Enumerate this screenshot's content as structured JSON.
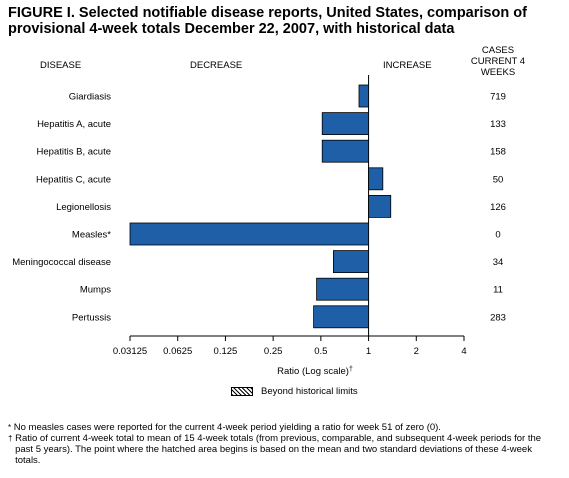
{
  "title": "FIGURE I. Selected notifiable disease reports, United States, comparison of provisional 4-week totals December 22, 2007, with historical data",
  "headers": {
    "disease": "DISEASE",
    "decrease": "DECREASE",
    "increase": "INCREASE",
    "cases": "CASES CURRENT 4 WEEKS"
  },
  "chart_data": {
    "type": "bar",
    "orientation": "horizontal",
    "xscale": "log2",
    "xlabel": "Ratio (Log scale)",
    "xlabel_mark": "†",
    "xlim": [
      0.03125,
      4
    ],
    "x_ticks": [
      "0.03125",
      "0.0625",
      "0.125",
      "0.25",
      "0.5",
      "1",
      "2",
      "4"
    ],
    "x_tick_values": [
      0.03125,
      0.0625,
      0.125,
      0.25,
      0.5,
      1,
      2,
      4
    ],
    "baseline": 1,
    "categories": [
      "Giardiasis",
      "Hepatitis A, acute",
      "Hepatitis B, acute",
      "Hepatitis C, acute",
      "Legionellosis",
      "Measles*",
      "Meningococcal disease",
      "Mumps",
      "Pertussis"
    ],
    "values": [
      0.87,
      0.51,
      0.51,
      1.23,
      1.38,
      0.03125,
      0.6,
      0.47,
      0.45
    ],
    "cases_current_4_weeks": [
      "719",
      "133",
      "158",
      "50",
      "126",
      "0",
      "34",
      "11",
      "283"
    ],
    "bar_color": "#1f5fa8"
  },
  "legend": {
    "label": "Beyond historical limits"
  },
  "footnotes": [
    {
      "mark": "*",
      "text": "No measles cases were reported for the current 4-week period yielding a ratio for week 51 of zero (0)."
    },
    {
      "mark": "†",
      "text": "Ratio of current 4-week total to mean of 15 4-week totals (from previous, comparable, and subsequent 4-week periods for the past 5 years). The point where the hatched area begins is based on the mean and two standard deviations of these 4-week totals."
    }
  ]
}
